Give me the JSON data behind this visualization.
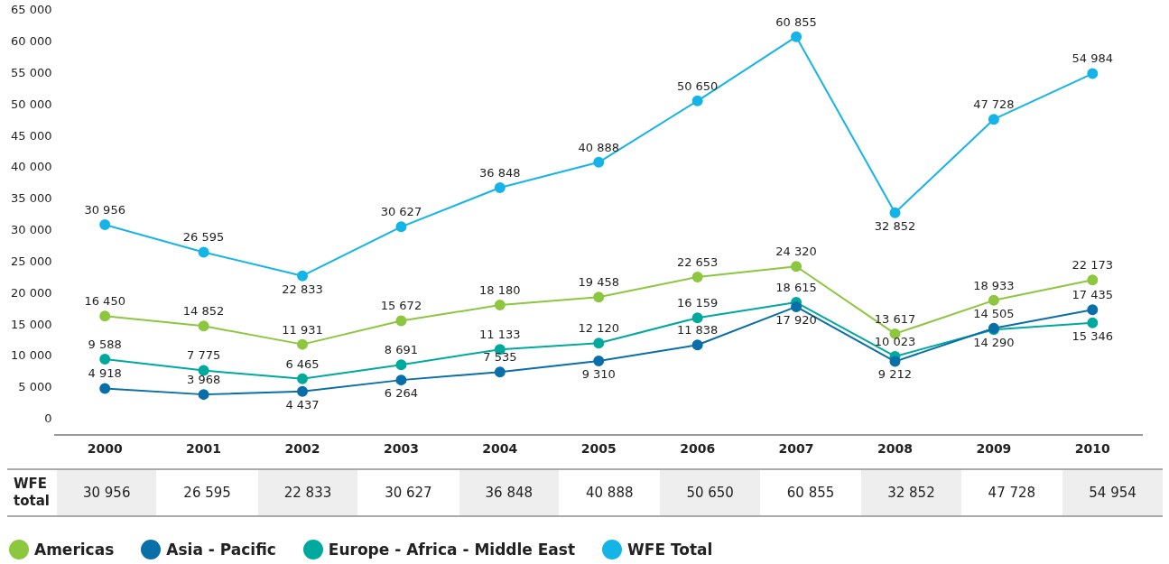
{
  "chart_data": {
    "type": "line",
    "categories": [
      "2000",
      "2001",
      "2002",
      "2003",
      "2004",
      "2005",
      "2006",
      "2007",
      "2008",
      "2009",
      "2010"
    ],
    "series": [
      {
        "name": "Americas",
        "color": "#8dc63f",
        "values": [
          16450,
          14852,
          11931,
          15672,
          18180,
          19458,
          22653,
          24320,
          13617,
          18933,
          22173
        ]
      },
      {
        "name": "Asia - Pacific",
        "color": "#0a6fa8",
        "values": [
          4918,
          3968,
          4437,
          6264,
          7535,
          9310,
          11838,
          17920,
          9212,
          14505,
          17435
        ]
      },
      {
        "name": "Europe - Africa - Middle East",
        "color": "#00a99d",
        "values": [
          9588,
          7775,
          6465,
          8691,
          11133,
          12120,
          16159,
          18615,
          10023,
          14290,
          15346
        ]
      },
      {
        "name": "WFE Total",
        "color": "#14b4e8",
        "values": [
          30956,
          26595,
          22833,
          30627,
          36848,
          40888,
          50650,
          60855,
          32852,
          47728,
          54984
        ]
      }
    ],
    "ylim": [
      -2500,
      65000
    ],
    "yticks": [
      {
        "value": 0,
        "label": "0"
      },
      {
        "value": 5000,
        "label": "5 000"
      },
      {
        "value": 10000,
        "label": "10 000"
      },
      {
        "value": 15000,
        "label": "15 000"
      },
      {
        "value": 20000,
        "label": "20 000"
      },
      {
        "value": 25000,
        "label": "25 000"
      },
      {
        "value": 30000,
        "label": "30 000"
      },
      {
        "value": 35000,
        "label": "35 000"
      },
      {
        "value": 40000,
        "label": "40 000"
      },
      {
        "value": 45000,
        "label": "45 000"
      },
      {
        "value": 50000,
        "label": "50 000"
      },
      {
        "value": 55000,
        "label": "55 000"
      },
      {
        "value": 60000,
        "label": "60 000"
      },
      {
        "value": 65000,
        "label": "65 000"
      }
    ],
    "grid": false,
    "marker": "circle",
    "line_style": "solid",
    "legend": "bottom",
    "data_labels": true,
    "annotations": [
      "WFE total",
      "30 956",
      "26 595",
      "22 833",
      "30 627",
      "36 848",
      "40 888",
      "50 650",
      "60 855",
      "32 852",
      "47 728",
      "54 954"
    ]
  }
}
